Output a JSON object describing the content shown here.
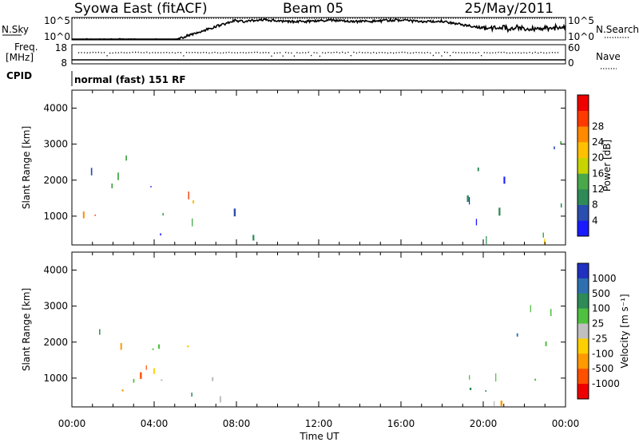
{
  "header": {
    "radar": "Syowa East (fitACF)",
    "beam": "Beam 05",
    "date": "25/May/2011",
    "cpid_label": "CPID",
    "cpid_value": "normal (fast) 151 RF"
  },
  "status_panels": {
    "nsky": {
      "label": "N.Sky",
      "ticks": [
        "10^5",
        "10^0"
      ]
    },
    "nsearch": {
      "label": "N.Search",
      "ticks": [
        "10^5",
        "10^0"
      ]
    },
    "freq": {
      "label_line1": "Freq.",
      "label_line2": "[MHz]",
      "ticks": [
        "18",
        "8"
      ]
    },
    "nave": {
      "label": "Nave",
      "ticks": [
        "60",
        "0"
      ]
    }
  },
  "time_axis": {
    "label": "Time UT",
    "ticks": [
      "00:00",
      "04:00",
      "08:00",
      "12:00",
      "16:00",
      "20:00",
      "00:00"
    ]
  },
  "chart_data": [
    {
      "type": "heatmap",
      "name": "power",
      "ylabel": "Slant Range [km]",
      "ylim": [
        200,
        4500
      ],
      "yticks": [
        "1000",
        "2000",
        "3000",
        "4000"
      ],
      "xlim_hours": [
        0,
        24
      ],
      "colorbar": {
        "label": "Power [dB]",
        "ticks": [
          "4",
          "8",
          "12",
          "16",
          "20",
          "24",
          "28"
        ],
        "colors": [
          "#1a1aff",
          "#2a4db0",
          "#2e8b57",
          "#4aa84a",
          "#c8d400",
          "#ffc000",
          "#ff8a00",
          "#ff3a00",
          "#ee0000"
        ]
      },
      "echo_regions": [
        {
          "t": [
            0.3,
            6.2
          ],
          "range_km": [
            200,
            1800
          ],
          "level": "high"
        },
        {
          "t": [
            0.8,
            5.6
          ],
          "range_km": [
            1800,
            3400
          ],
          "level": "medium"
        },
        {
          "t": [
            6.3,
            9.8
          ],
          "range_km": [
            350,
            1250
          ],
          "level": "low"
        },
        {
          "t": [
            19.2,
            23.8
          ],
          "range_km": [
            200,
            3400
          ],
          "level": "medium"
        },
        {
          "t": [
            21.8,
            23.8
          ],
          "range_km": [
            200,
            700
          ],
          "level": "high"
        }
      ]
    },
    {
      "type": "heatmap",
      "name": "velocity",
      "ylabel": "Slant Range [km]",
      "ylim": [
        200,
        4500
      ],
      "yticks": [
        "1000",
        "2000",
        "3000",
        "4000"
      ],
      "xlim_hours": [
        0,
        24
      ],
      "colorbar": {
        "label": "Velocity [m s⁻¹]",
        "ticks": [
          "1000",
          "500",
          "100",
          "25",
          "-25",
          "-100",
          "-500",
          "-1000"
        ],
        "colors": [
          "#2030c0",
          "#2e6fb0",
          "#2e8b57",
          "#50c040",
          "#c0c0c0",
          "#ffd000",
          "#ff9a00",
          "#ff5000",
          "#ee0000"
        ]
      },
      "echo_regions": [
        {
          "t": [
            0.3,
            6.2
          ],
          "range_km": [
            200,
            1800
          ],
          "level": "away"
        },
        {
          "t": [
            0.8,
            5.6
          ],
          "range_km": [
            1800,
            3400
          ],
          "level": "mixed"
        },
        {
          "t": [
            6.3,
            9.8
          ],
          "range_km": [
            350,
            1250
          ],
          "level": "zero"
        },
        {
          "t": [
            19.2,
            23.8
          ],
          "range_km": [
            200,
            3400
          ],
          "level": "toward"
        }
      ]
    }
  ]
}
